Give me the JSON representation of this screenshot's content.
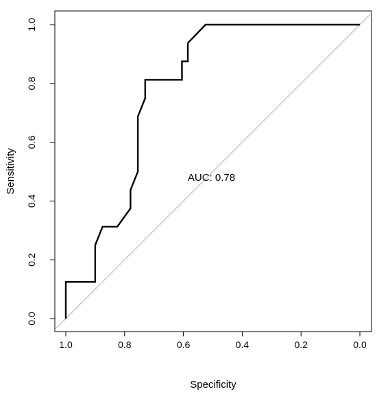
{
  "chart_data": {
    "type": "line",
    "xlabel": "Specificity",
    "ylabel": "Sensitivity",
    "xlim": [
      1.0,
      0.0
    ],
    "ylim": [
      0.0,
      1.0
    ],
    "x_reversed": true,
    "grid": false,
    "x_ticks": [
      "1.0",
      "0.8",
      "0.6",
      "0.4",
      "0.2",
      "0.0"
    ],
    "x_tick_values": [
      1.0,
      0.8,
      0.6,
      0.4,
      0.2,
      0.0
    ],
    "y_ticks": [
      "0.0",
      "0.2",
      "0.4",
      "0.6",
      "0.8",
      "1.0"
    ],
    "y_tick_values": [
      0.0,
      0.2,
      0.4,
      0.6,
      0.8,
      1.0
    ],
    "annotation": "AUC: 0.78",
    "annotation_position": {
      "specificity": 0.5,
      "sensitivity": 0.48
    },
    "reference_line": {
      "from": [
        1.0,
        0.0
      ],
      "to": [
        0.0,
        1.0
      ],
      "color": "#b0b0b0"
    },
    "curve_color": "#000000",
    "series": [
      {
        "specificity": [
          1.0,
          1.0,
          0.9,
          0.9,
          0.875,
          0.825,
          0.78,
          0.78,
          0.755,
          0.755,
          0.73,
          0.73,
          0.605,
          0.605,
          0.585,
          0.585,
          0.525,
          0.0
        ],
        "sensitivity": [
          0.0,
          0.125,
          0.125,
          0.25,
          0.3125,
          0.3125,
          0.375,
          0.4375,
          0.5,
          0.6875,
          0.75,
          0.8125,
          0.8125,
          0.875,
          0.875,
          0.9375,
          1.0,
          1.0
        ]
      }
    ]
  }
}
